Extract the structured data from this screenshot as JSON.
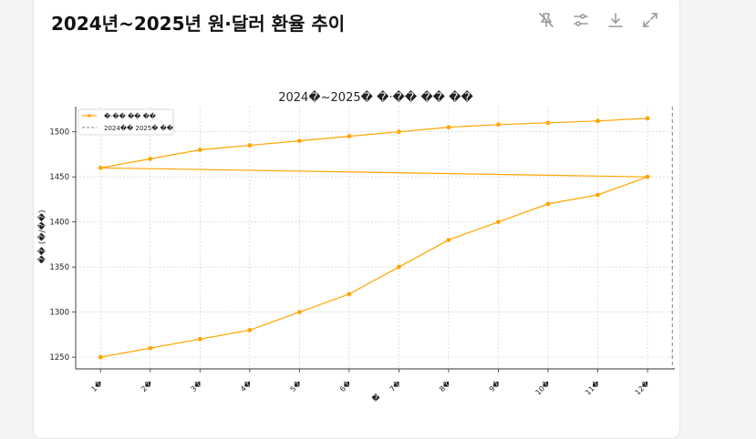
{
  "header": {
    "title": "2024년~2025년 원·달러 환율 추이"
  },
  "toolbar": {
    "icons": [
      "pin-off-icon",
      "settings-sliders-icon",
      "download-icon",
      "expand-icon"
    ]
  },
  "colors": {
    "series": "#FFA500",
    "projection_line": "#808080",
    "grid": "#cccccc"
  },
  "chart_data": {
    "type": "line",
    "title": "2024�~2025� �·�� �� ��",
    "xlabel": "�",
    "ylabel": "�� (�/��)",
    "categories": [
      "1�",
      "2�",
      "3�",
      "4�",
      "5�",
      "6�",
      "7�",
      "8�",
      "9�",
      "10�",
      "11�",
      "12�",
      "1�",
      "2�",
      "3�",
      "4�",
      "5�",
      "6�",
      "7�",
      "8�",
      "9�",
      "10�",
      "11�",
      "12�"
    ],
    "x": [
      1,
      2,
      3,
      4,
      5,
      6,
      7,
      8,
      9,
      10,
      11,
      12,
      1,
      2,
      3,
      4,
      5,
      6,
      7,
      8,
      9,
      10,
      11,
      12
    ],
    "xticks": [
      "1�",
      "2�",
      "3�",
      "4�",
      "5�",
      "6�",
      "7�",
      "8�",
      "9�",
      "10�",
      "11�",
      "12�"
    ],
    "series": [
      {
        "name": "�·�� �� ��",
        "values": [
          1250,
          1260,
          1270,
          1280,
          1300,
          1320,
          1350,
          1380,
          1400,
          1420,
          1430,
          1450,
          1460,
          1470,
          1480,
          1485,
          1490,
          1495,
          1500,
          1505,
          1508,
          1510,
          1512,
          1515
        ]
      }
    ],
    "vline": {
      "name": "2024�� 2025� ��",
      "x": 12.5
    },
    "ylim": [
      1237,
      1528
    ],
    "xlim": [
      0.5,
      12.55
    ],
    "yticks": [
      1250,
      1300,
      1350,
      1400,
      1450,
      1500
    ],
    "grid": true,
    "legend": "top-left"
  }
}
